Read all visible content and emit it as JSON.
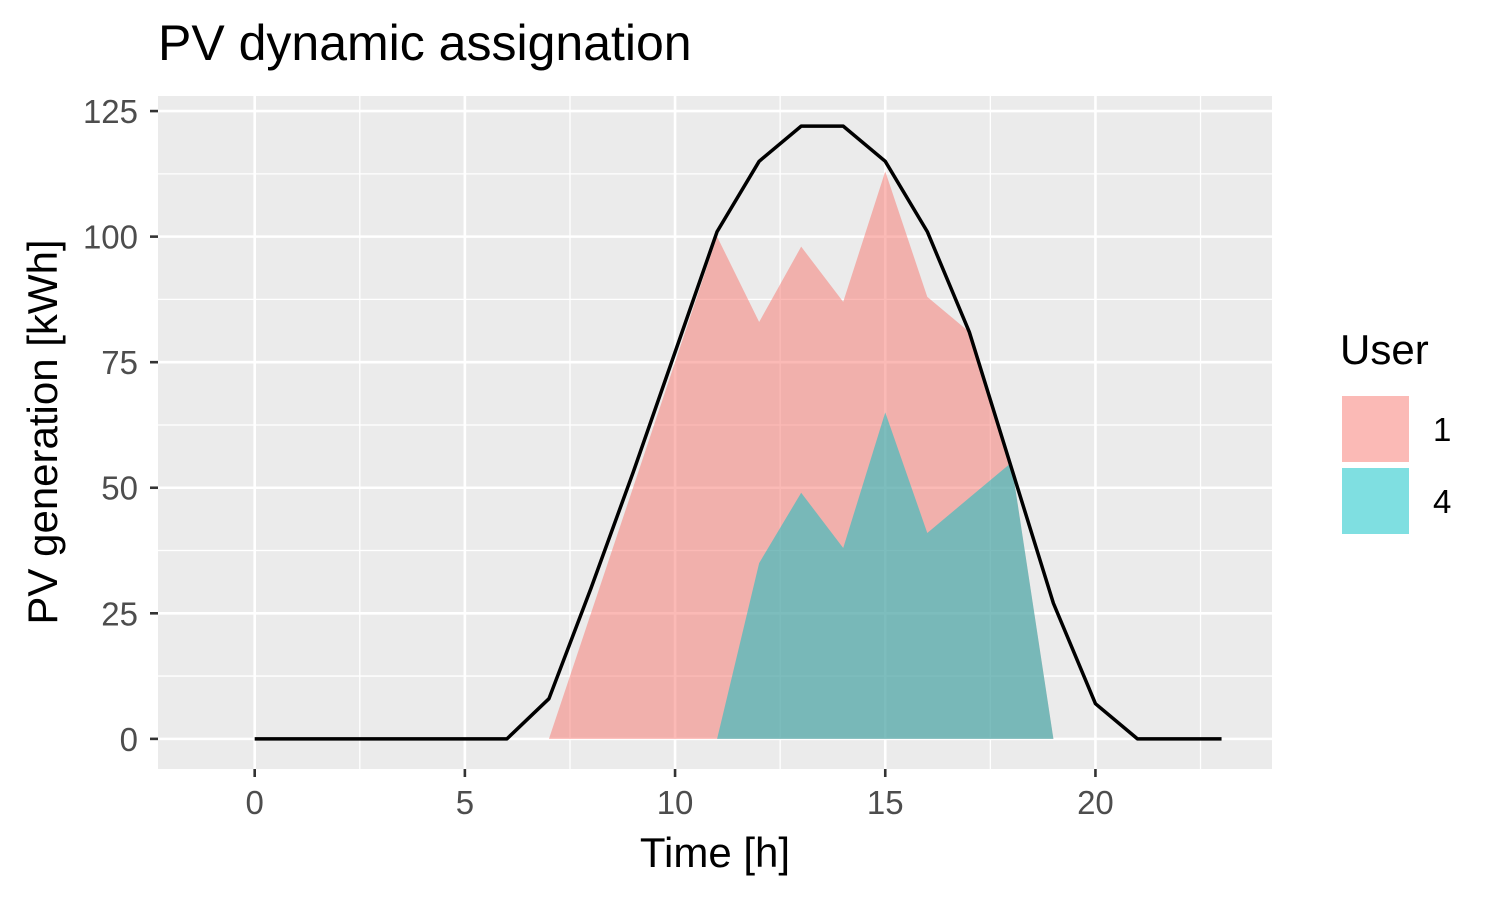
{
  "chart_data": {
    "type": "area",
    "title": "PV dynamic assignation",
    "xlabel": "Time [h]",
    "ylabel": "PV generation [kWh]",
    "xlim": [
      -2.3,
      24.2
    ],
    "ylim": [
      -6,
      128
    ],
    "xticks": [
      0,
      5,
      10,
      15,
      20
    ],
    "yticks": [
      0,
      25,
      50,
      75,
      100,
      125
    ],
    "grid": true,
    "legend": {
      "title": "User",
      "position": "right",
      "entries": [
        {
          "label": "1",
          "color": "#f8766d"
        },
        {
          "label": "4",
          "color": "#00bfc4"
        }
      ]
    },
    "total_line": {
      "color": "#000000",
      "x": [
        0,
        1,
        2,
        3,
        4,
        5,
        6,
        7,
        8,
        9,
        10,
        11,
        12,
        13,
        14,
        15,
        16,
        17,
        18,
        19,
        20,
        21,
        22,
        23
      ],
      "y": [
        0,
        0,
        0,
        0,
        0,
        0,
        0,
        8,
        30,
        53,
        77,
        101,
        115,
        122,
        122,
        115,
        101,
        81,
        54,
        27,
        7,
        0,
        0,
        0
      ]
    },
    "series": [
      {
        "name": "1",
        "color": "#f8766d",
        "x": [
          7,
          8,
          9,
          10,
          11,
          12,
          13,
          14,
          15,
          16,
          17,
          18,
          19
        ],
        "y": [
          0,
          25,
          50,
          75,
          100,
          83,
          98,
          87,
          113,
          88,
          81,
          55,
          0
        ]
      },
      {
        "name": "4",
        "color": "#00bfc4",
        "x": [
          11,
          12,
          13,
          14,
          15,
          16,
          17,
          18,
          19
        ],
        "y": [
          0,
          35,
          49,
          38,
          65,
          41,
          48,
          55,
          0
        ]
      }
    ]
  }
}
